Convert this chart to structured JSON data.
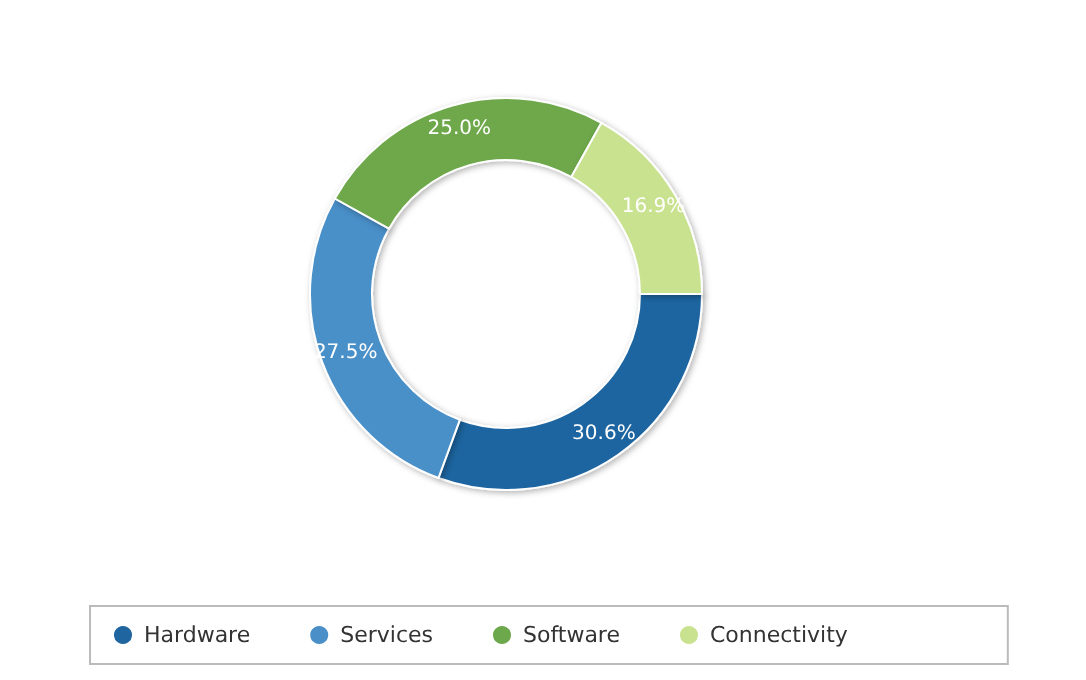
{
  "chart_data": {
    "type": "donut",
    "categories": [
      "Hardware",
      "Services",
      "Software",
      "Connectivity"
    ],
    "values": [
      30.6,
      27.5,
      25.0,
      16.9
    ],
    "colors": [
      "#1f65a0",
      "#4a8fc8",
      "#6ea84c",
      "#c9e28f"
    ],
    "value_labels": [
      "30.6%",
      "27.5%",
      "25.0%",
      "16.9%"
    ],
    "legend": "bottom"
  }
}
